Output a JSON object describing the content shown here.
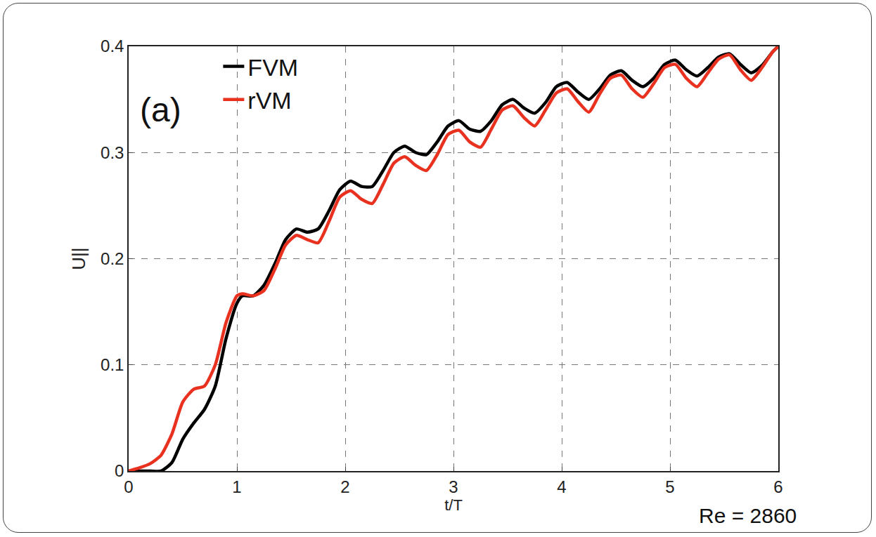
{
  "chart_data": {
    "type": "line",
    "x_label": "t/T",
    "y_label": "U||",
    "annotations": [
      "(a)",
      "Re = 2860"
    ],
    "x": [
      0,
      0.1,
      0.2,
      0.3,
      0.4,
      0.5,
      0.6,
      0.7,
      0.8,
      0.9,
      1.0,
      1.05,
      1.15,
      1.25,
      1.35,
      1.45,
      1.55,
      1.65,
      1.75,
      1.85,
      1.95,
      2.05,
      2.15,
      2.25,
      2.35,
      2.45,
      2.55,
      2.65,
      2.75,
      2.85,
      2.95,
      3.05,
      3.15,
      3.25,
      3.35,
      3.45,
      3.55,
      3.65,
      3.75,
      3.85,
      3.95,
      4.05,
      4.15,
      4.25,
      4.35,
      4.45,
      4.55,
      4.65,
      4.75,
      4.85,
      4.95,
      5.05,
      5.15,
      5.25,
      5.35,
      5.45,
      5.55,
      5.65,
      5.75,
      5.85,
      5.95,
      6.0
    ],
    "series": [
      {
        "name": "FVM",
        "color": "#000000",
        "values": [
          0,
          0,
          0,
          0,
          0.008,
          0.03,
          0.045,
          0.058,
          0.08,
          0.125,
          0.158,
          0.165,
          0.165,
          0.175,
          0.195,
          0.218,
          0.228,
          0.225,
          0.228,
          0.245,
          0.265,
          0.273,
          0.268,
          0.268,
          0.283,
          0.3,
          0.306,
          0.3,
          0.298,
          0.31,
          0.325,
          0.33,
          0.322,
          0.32,
          0.33,
          0.345,
          0.35,
          0.342,
          0.337,
          0.347,
          0.362,
          0.366,
          0.357,
          0.35,
          0.36,
          0.373,
          0.377,
          0.368,
          0.362,
          0.37,
          0.383,
          0.387,
          0.378,
          0.372,
          0.38,
          0.39,
          0.393,
          0.383,
          0.375,
          0.382,
          0.395,
          0.4
        ]
      },
      {
        "name": "rVM",
        "color": "#e8311f",
        "values": [
          0,
          0.003,
          0.007,
          0.015,
          0.035,
          0.065,
          0.077,
          0.08,
          0.1,
          0.14,
          0.165,
          0.167,
          0.165,
          0.17,
          0.19,
          0.213,
          0.222,
          0.218,
          0.215,
          0.235,
          0.258,
          0.264,
          0.256,
          0.252,
          0.27,
          0.29,
          0.296,
          0.288,
          0.283,
          0.298,
          0.317,
          0.321,
          0.31,
          0.305,
          0.322,
          0.34,
          0.344,
          0.333,
          0.325,
          0.34,
          0.356,
          0.36,
          0.348,
          0.338,
          0.355,
          0.37,
          0.373,
          0.36,
          0.352,
          0.365,
          0.38,
          0.383,
          0.37,
          0.362,
          0.375,
          0.388,
          0.392,
          0.378,
          0.368,
          0.38,
          0.395,
          0.4
        ]
      }
    ],
    "xlim": [
      0,
      6
    ],
    "xticks": [
      0,
      1,
      2,
      3,
      4,
      5,
      6
    ],
    "ylim": [
      0,
      0.4
    ],
    "yticks": [
      0,
      0.1,
      0.2,
      0.3,
      0.4
    ],
    "grid": true,
    "legend": "top left"
  }
}
